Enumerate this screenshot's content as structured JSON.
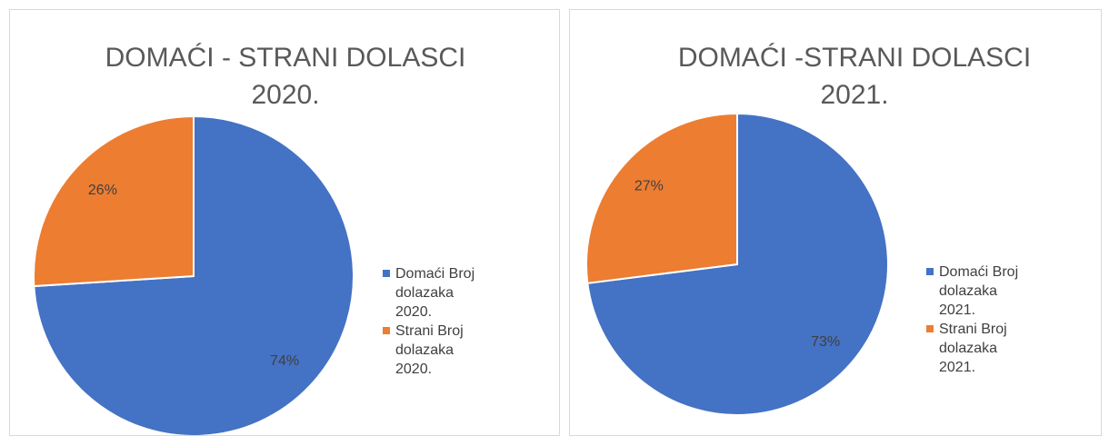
{
  "chart_data": [
    {
      "type": "pie",
      "title": "DOMAĆI - STRANI DOLASCI 2020.",
      "categories": [
        "Domaći Broj dolazaka 2020.",
        "Strani Broj dolazaka 2020."
      ],
      "values": [
        74,
        26
      ],
      "value_labels": [
        "74%",
        "26%"
      ],
      "colors": [
        "#4472c4",
        "#ed7d31"
      ],
      "legend": "right"
    },
    {
      "type": "pie",
      "title": "DOMAĆI -STRANI DOLASCI 2021.",
      "categories": [
        "Domaći Broj dolazaka 2021.",
        "Strani Broj dolazaka 2021."
      ],
      "values": [
        73,
        27
      ],
      "value_labels": [
        "73%",
        "27%"
      ],
      "colors": [
        "#4472c4",
        "#ed7d31"
      ],
      "legend": "right"
    }
  ]
}
